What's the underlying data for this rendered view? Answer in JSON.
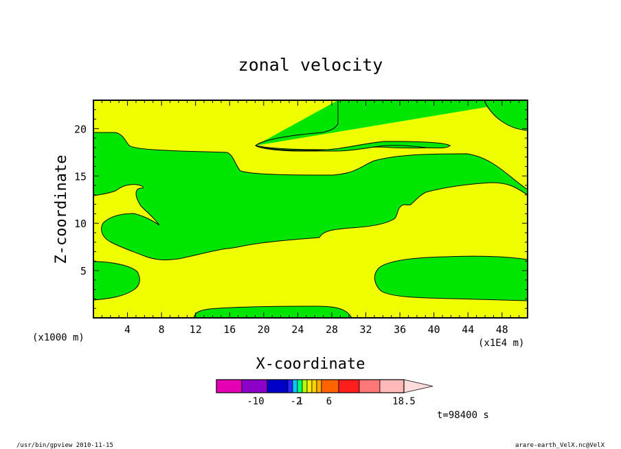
{
  "chart_data": {
    "type": "contour",
    "title": "zonal velocity",
    "xlabel": "X-coordinate",
    "ylabel": "Z-coordinate",
    "x_unit_note": "(x1E4 m)",
    "y_unit_note": "(x1000 m)",
    "xlim": [
      0,
      51
    ],
    "ylim": [
      0,
      23
    ],
    "x_ticks": [
      4,
      8,
      12,
      16,
      20,
      24,
      28,
      32,
      36,
      40,
      44,
      48
    ],
    "y_ticks": [
      5,
      10,
      15,
      20
    ],
    "colors": {
      "green": "#00e600",
      "yellow": "#f0ff00"
    },
    "colorbar": {
      "colors": [
        "#e600b4",
        "#8c00c8",
        "#0000c8",
        "#2828ff",
        "#00c8ff",
        "#00ff78",
        "#b4ff00",
        "#ffeb00",
        "#ffd200",
        "#ffaa00",
        "#ff6400",
        "#ff1e1e",
        "#ff7878",
        "#ffb9b9",
        "#ffdcdc"
      ],
      "labels": [
        "-10",
        "-2",
        "1",
        "6",
        "18.5"
      ]
    },
    "time_label": "t=98400 s"
  },
  "footer": {
    "left": "/usr/bin/gpview  2010-11-15",
    "right": "arare-earth_VelX.nc@VelX"
  }
}
